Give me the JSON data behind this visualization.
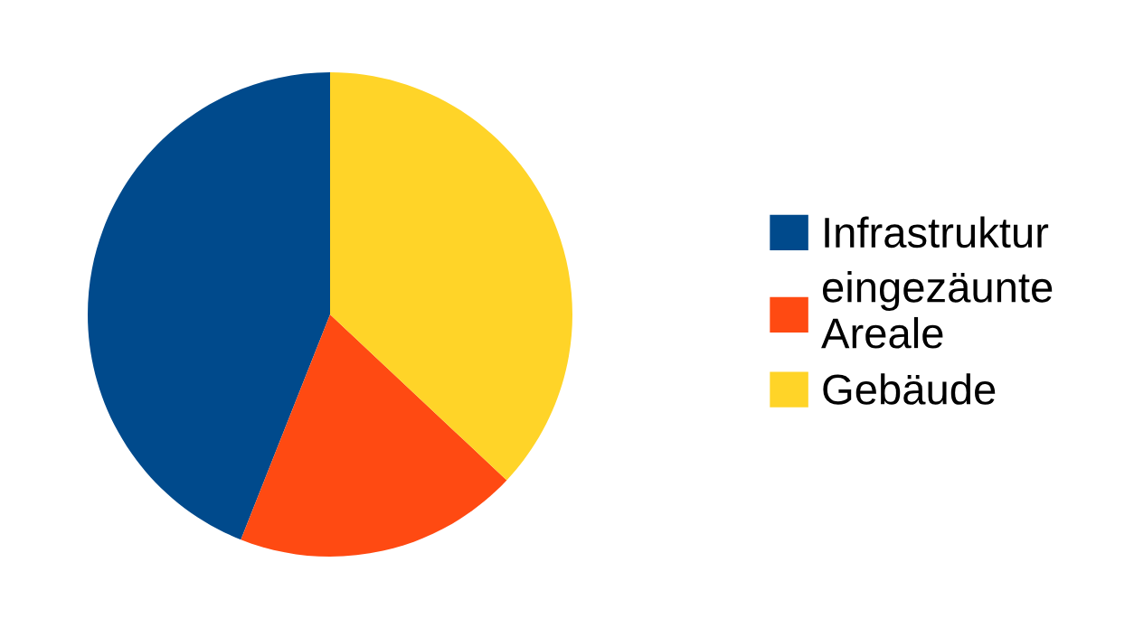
{
  "chart_data": {
    "type": "pie",
    "categories": [
      "Infrastruktur",
      "eingezäunte\nAreale",
      "Gebäude"
    ],
    "values": [
      44,
      19,
      37
    ],
    "colors": [
      "#004a8c",
      "#ff4a12",
      "#ffd428"
    ],
    "legend": "right"
  }
}
